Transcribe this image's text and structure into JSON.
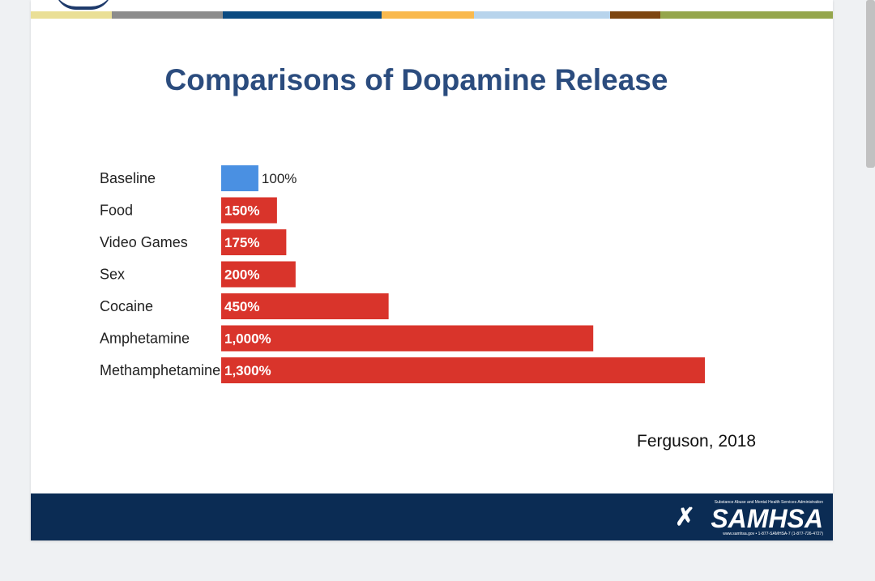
{
  "slide": {
    "title": "Comparisons of Dopamine Release",
    "citation": "Ferguson, 2018",
    "stripe_colors": [
      "#eadf96",
      "#8c8c8c",
      "#0b4a80",
      "#f9b94e",
      "#b8d4ec",
      "#7d4510",
      "#95a64c"
    ]
  },
  "footer": {
    "logo_word": "SAMHSA",
    "logo_tagline": "Substance Abuse and Mental Health Services Administration",
    "logo_contact": "www.samhsa.gov • 1-877-SAMHSA-7 (1-877-726-4727)"
  },
  "chart_data": {
    "type": "bar",
    "orientation": "horizontal",
    "categories": [
      "Baseline",
      "Food",
      "Video Games",
      "Sex",
      "Cocaine",
      "Amphetamine",
      "Methamphetamine"
    ],
    "values": [
      100,
      150,
      175,
      200,
      450,
      1000,
      1300
    ],
    "value_labels": [
      "100%",
      "150%",
      "175%",
      "200%",
      "450%",
      "1,000%",
      "1,300%"
    ],
    "colors": [
      "#4a90e2",
      "#d9342b",
      "#d9342b",
      "#d9342b",
      "#d9342b",
      "#d9342b",
      "#d9342b"
    ],
    "xlim": [
      0,
      1300
    ],
    "grid": false,
    "legend": "none"
  }
}
